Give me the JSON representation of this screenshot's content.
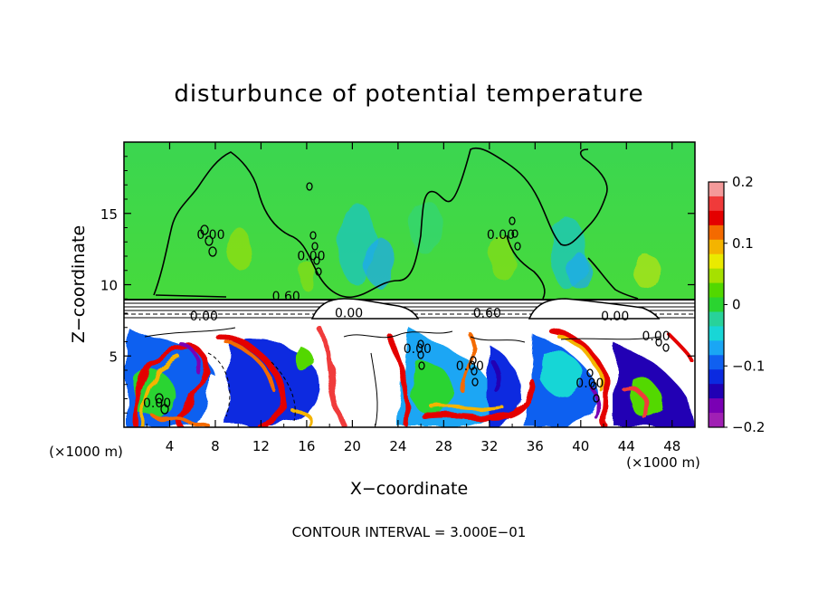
{
  "chart_data": {
    "type": "heatmap",
    "title": "disturbunce of potential temperature",
    "xlabel": "X−coordinate",
    "ylabel": "Z−coordinate",
    "x_unit_label": "(×1000 m)",
    "y_unit_label": "(×1000 m)",
    "xlim": [
      0,
      50
    ],
    "ylim": [
      0,
      20
    ],
    "x_ticks": [
      4,
      8,
      12,
      16,
      20,
      24,
      28,
      32,
      36,
      40,
      44,
      48
    ],
    "x_tick_labels": [
      "4",
      "8",
      "12",
      "16",
      "20",
      "24",
      "28",
      "32",
      "36",
      "40",
      "44",
      "48"
    ],
    "y_ticks": [
      5,
      10,
      15
    ],
    "y_tick_labels": [
      "5",
      "10",
      "15"
    ],
    "colorbar": {
      "range": [
        -0.2,
        0.2
      ],
      "ticks": [
        0.2,
        0.1,
        0,
        -0.1,
        -0.2
      ],
      "tick_labels": [
        "0.2",
        "0.1",
        "0",
        "−0.1",
        "−0.2"
      ],
      "colors": [
        "#f49a9a",
        "#f03a3a",
        "#e40000",
        "#f46a00",
        "#f4b400",
        "#eaea00",
        "#a6e000",
        "#52d800",
        "#2ad430",
        "#28d29a",
        "#18d6d6",
        "#1aa6f4",
        "#1060f0",
        "#0b2ae0",
        "#2000b4",
        "#7a00b4",
        "#a020b4"
      ]
    },
    "contour_labels": [
      {
        "x": 14.2,
        "z": 8.9,
        "text": "0.60"
      },
      {
        "x": 7.0,
        "z": 7.5,
        "text": "0.00"
      },
      {
        "x": 19.7,
        "z": 7.7,
        "text": "0.00"
      },
      {
        "x": 31.8,
        "z": 7.7,
        "text": "0.60"
      },
      {
        "x": 43.0,
        "z": 7.5,
        "text": "0.00"
      },
      {
        "x": 2.9,
        "z": 1.4,
        "text": "0.00"
      },
      {
        "x": 7.6,
        "z": 13.2,
        "text": "0.00"
      },
      {
        "x": 16.4,
        "z": 11.7,
        "text": "0.00"
      },
      {
        "x": 33.0,
        "z": 13.2,
        "text": "0.00"
      },
      {
        "x": 25.7,
        "z": 5.2,
        "text": "0.00"
      },
      {
        "x": 30.3,
        "z": 4.0,
        "text": "0.00"
      },
      {
        "x": 40.8,
        "z": 2.8,
        "text": "0.00"
      },
      {
        "x": 46.6,
        "z": 6.1,
        "text": "0.00"
      }
    ],
    "footer": "CONTOUR INTERVAL = 3.000E−01"
  }
}
